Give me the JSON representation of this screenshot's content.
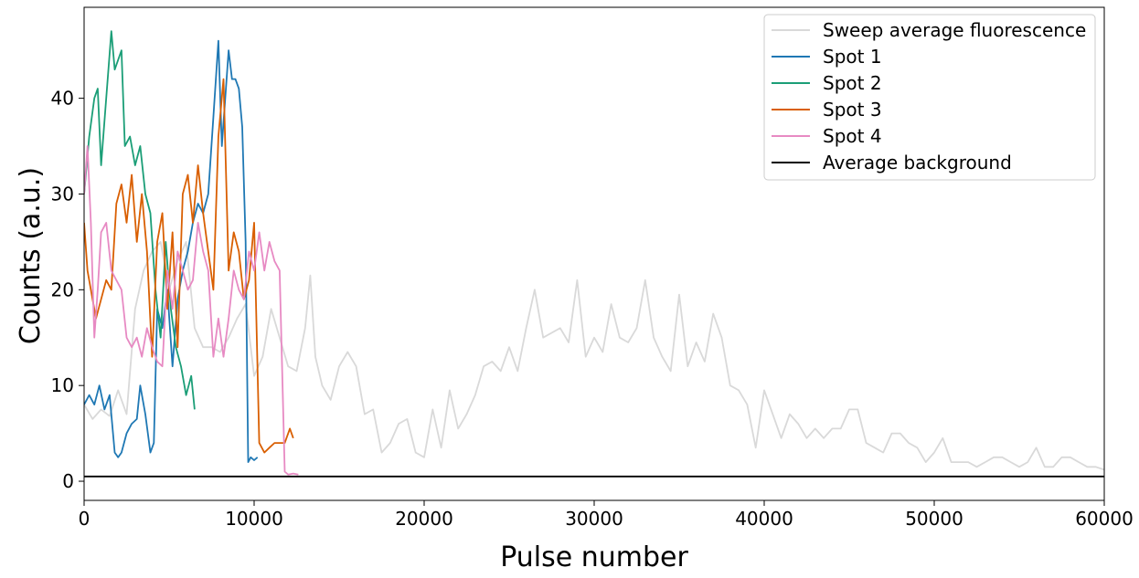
{
  "chart_data": {
    "type": "line",
    "xlabel": "Pulse number",
    "ylabel": "Counts (a.u.)",
    "xlim": [
      0,
      60000
    ],
    "ylim": [
      -2,
      49.5
    ],
    "xticks": [
      0,
      10000,
      20000,
      30000,
      40000,
      50000,
      60000
    ],
    "xtick_labels": [
      "0",
      "10000",
      "20000",
      "30000",
      "40000",
      "50000",
      "60000"
    ],
    "yticks": [
      0,
      10,
      20,
      30,
      40
    ],
    "ytick_labels": [
      "0",
      "10",
      "20",
      "30",
      "40"
    ],
    "grid": false,
    "legend_position": "upper right",
    "series": [
      {
        "name": "Sweep average fluorescence",
        "color": "#d9d9d9",
        "x": [
          0,
          500,
          1000,
          1500,
          2000,
          2500,
          3000,
          3500,
          4000,
          4500,
          5000,
          5500,
          6000,
          6500,
          7000,
          7500,
          8000,
          8500,
          9000,
          9500,
          10000,
          10500,
          11000,
          11500,
          12000,
          12500,
          13000,
          13300,
          13600,
          14000,
          14500,
          15000,
          15500,
          16000,
          16500,
          17000,
          17500,
          18000,
          18500,
          19000,
          19500,
          20000,
          20500,
          21000,
          21500,
          22000,
          22500,
          23000,
          23500,
          24000,
          24500,
          25000,
          25500,
          26000,
          26500,
          27000,
          27500,
          28000,
          28500,
          29000,
          29500,
          30000,
          30500,
          31000,
          31500,
          32000,
          32500,
          33000,
          33500,
          34000,
          34500,
          35000,
          35500,
          36000,
          36500,
          37000,
          37500,
          38000,
          38500,
          39000,
          39500,
          40000,
          40500,
          41000,
          41500,
          42000,
          42500,
          43000,
          43500,
          44000,
          44500,
          45000,
          45500,
          46000,
          46500,
          47000,
          47500,
          48000,
          48500,
          49000,
          49500,
          50000,
          50500,
          51000,
          51500,
          52000,
          52500,
          53000,
          53500,
          54000,
          54500,
          55000,
          55500,
          56000,
          56500,
          57000,
          57500,
          58000,
          58500,
          59000,
          59500,
          60000
        ],
        "y": [
          8,
          6.5,
          7.5,
          6.8,
          9.5,
          7,
          18,
          22,
          24,
          25,
          20,
          23,
          25,
          16,
          14,
          14,
          13.5,
          15,
          17,
          18.5,
          11,
          13,
          18,
          15,
          12,
          11.5,
          16,
          21.5,
          13,
          10,
          8.5,
          12,
          13.5,
          12,
          7,
          7.5,
          3,
          4,
          6,
          6.5,
          3,
          2.5,
          7.5,
          3.5,
          9.5,
          5.5,
          7,
          9,
          12,
          12.5,
          11.5,
          14,
          11.5,
          16,
          20,
          15,
          15.5,
          16,
          14.5,
          21,
          13,
          15,
          13.5,
          18.5,
          15,
          14.5,
          16,
          21,
          15,
          13,
          11.5,
          19.5,
          12,
          14.5,
          12.5,
          17.5,
          15,
          10,
          9.5,
          8,
          3.5,
          9.5,
          7,
          4.5,
          7,
          6,
          4.5,
          5.5,
          4.5,
          5.5,
          5.5,
          7.5,
          7.5,
          4,
          3.5,
          3,
          5,
          5,
          4,
          3.5,
          2,
          3,
          4.5,
          2,
          2,
          2,
          1.5,
          2,
          2.5,
          2.5,
          2,
          1.5,
          2,
          3.5,
          1.5,
          1.5,
          2.5,
          2.5,
          2,
          1.5,
          1.5,
          1.2
        ]
      },
      {
        "name": "Spot 1",
        "color": "#1f78b4",
        "x": [
          0,
          300,
          600,
          900,
          1200,
          1500,
          1800,
          2000,
          2200,
          2500,
          2800,
          3100,
          3300,
          3600,
          3900,
          4100,
          4300,
          4600,
          4900,
          5200,
          5500,
          5800,
          6100,
          6400,
          6700,
          7000,
          7300,
          7600,
          7900,
          8100,
          8300,
          8500,
          8700,
          8900,
          9100,
          9300,
          9500,
          9650,
          9800,
          10000,
          10200
        ],
        "y": [
          8,
          9,
          8,
          10,
          7.5,
          9,
          3,
          2.5,
          3,
          5,
          6,
          6.5,
          10,
          7,
          3,
          4,
          18,
          16,
          20,
          12,
          19,
          22,
          24,
          27,
          29,
          28,
          30,
          38,
          46,
          35,
          40,
          45,
          42,
          42,
          41,
          37,
          25,
          2,
          2.5,
          2.2,
          2.5
        ]
      },
      {
        "name": "Spot 2",
        "color": "#1b9e77",
        "x": [
          0,
          300,
          600,
          800,
          1000,
          1300,
          1600,
          1800,
          2000,
          2200,
          2400,
          2700,
          3000,
          3300,
          3600,
          3900,
          4200,
          4500,
          4800,
          5100,
          5400,
          5700,
          6000,
          6300,
          6500
        ],
        "y": [
          30,
          36,
          40,
          41,
          33,
          40,
          47,
          43,
          44,
          45,
          35,
          36,
          33,
          35,
          30,
          28,
          20,
          15,
          25,
          18,
          14,
          12,
          9,
          11,
          7.5
        ]
      },
      {
        "name": "Spot 3",
        "color": "#d95f02",
        "x": [
          0,
          200,
          400,
          700,
          1000,
          1300,
          1600,
          1900,
          2200,
          2500,
          2800,
          3100,
          3400,
          3700,
          4000,
          4300,
          4600,
          4900,
          5200,
          5500,
          5800,
          6100,
          6400,
          6700,
          7000,
          7300,
          7600,
          7900,
          8200,
          8500,
          8800,
          9100,
          9400,
          9700,
          10000,
          10300,
          10600,
          10900,
          11200,
          11500,
          11800,
          12100,
          12300
        ],
        "y": [
          27,
          22,
          20,
          17,
          19,
          21,
          20,
          29,
          31,
          27,
          32,
          25,
          30,
          24,
          13,
          25,
          28,
          18,
          26,
          14,
          30,
          32,
          27,
          33,
          28,
          24,
          20,
          36,
          42,
          22,
          26,
          24,
          19,
          21,
          27,
          4,
          3,
          3.5,
          4,
          4,
          4,
          5.5,
          4.5
        ]
      },
      {
        "name": "Spot 4",
        "color": "#e78ac3",
        "x": [
          0,
          200,
          400,
          600,
          800,
          1000,
          1300,
          1600,
          1900,
          2200,
          2500,
          2800,
          3100,
          3400,
          3700,
          4000,
          4300,
          4600,
          4900,
          5200,
          5500,
          5800,
          6100,
          6400,
          6700,
          7000,
          7300,
          7600,
          7900,
          8200,
          8500,
          8800,
          9100,
          9400,
          9700,
          10000,
          10300,
          10600,
          10900,
          11200,
          11500,
          11800,
          12000,
          12300,
          12600
        ],
        "y": [
          30,
          35,
          27,
          15,
          20,
          26,
          27,
          22,
          21,
          20,
          15,
          14,
          15,
          13,
          16,
          14,
          12.5,
          12,
          22,
          18,
          24,
          22,
          20,
          21,
          27,
          24,
          22,
          13,
          17,
          13,
          17,
          22,
          20,
          19,
          24,
          22,
          26,
          22,
          25,
          23,
          22,
          1,
          0.7,
          0.8,
          0.7
        ]
      },
      {
        "name": "Average background",
        "color": "#000000",
        "x": [
          0,
          60000
        ],
        "y": [
          0.5,
          0.5
        ]
      }
    ]
  }
}
